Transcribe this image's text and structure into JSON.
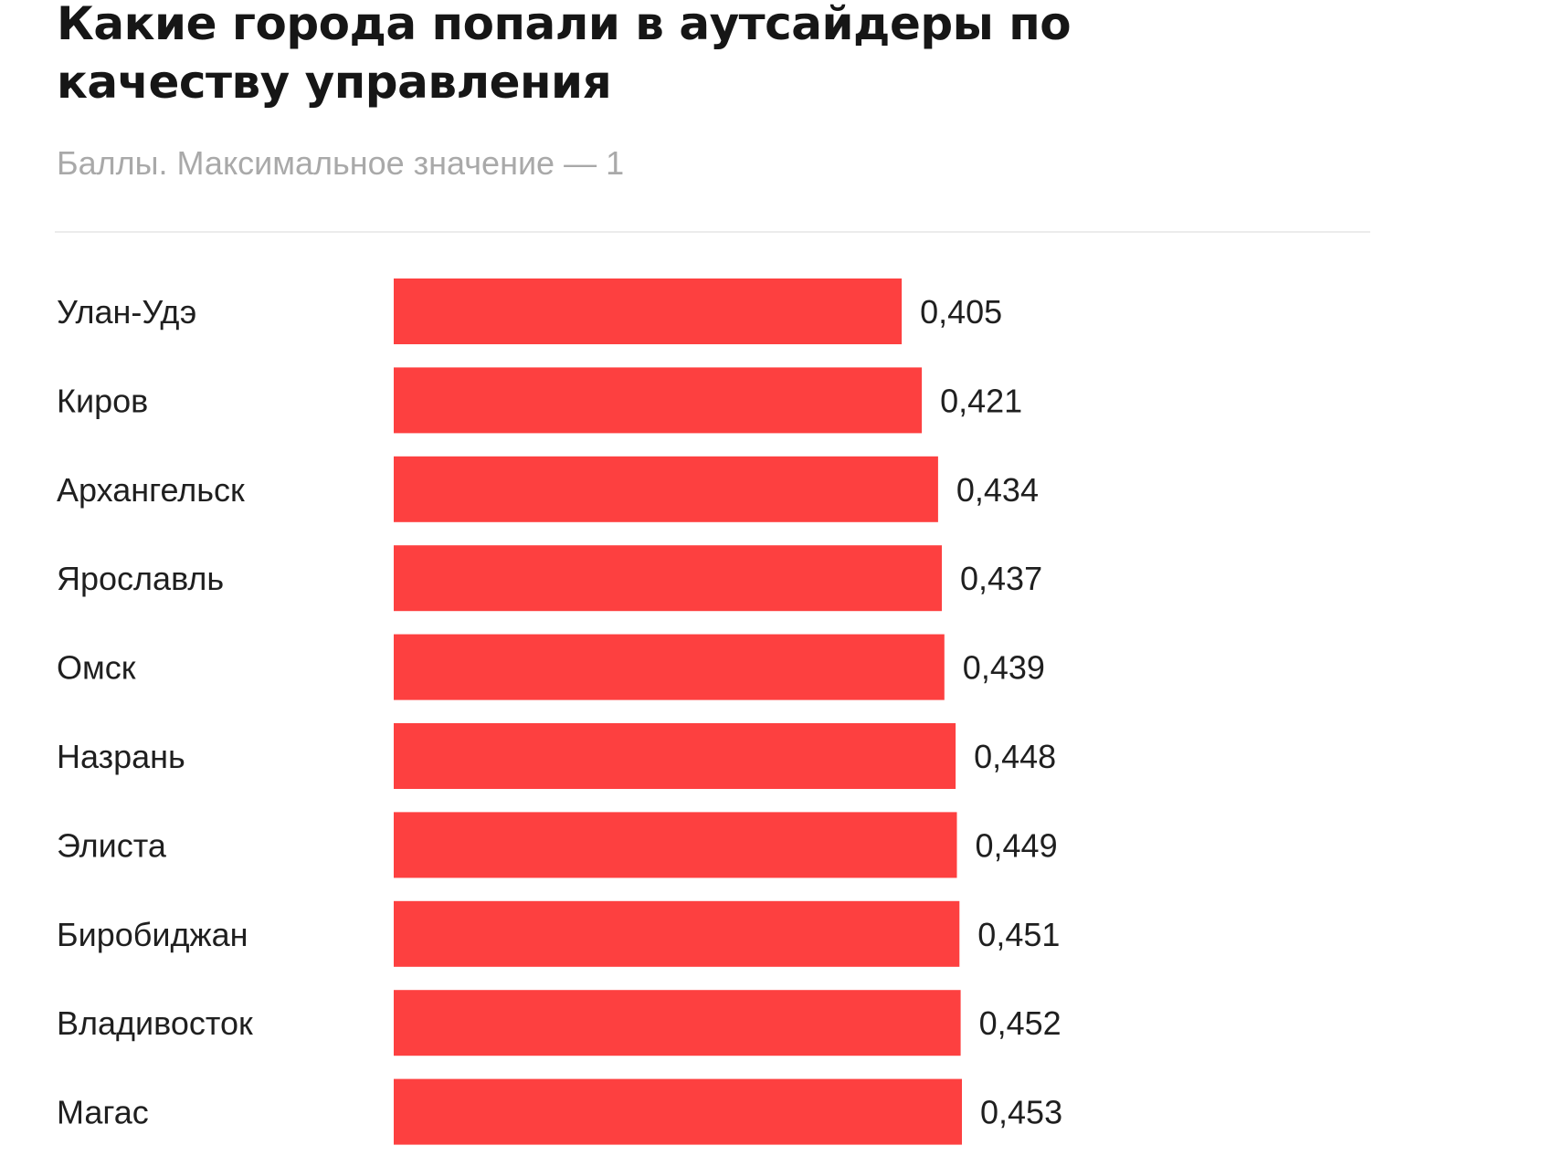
{
  "colors": {
    "bar": "#fd4040",
    "title": "#161616",
    "subtitle": "#a9a9a9",
    "text": "#1f1f1f"
  },
  "chart_data": {
    "type": "bar",
    "orientation": "horizontal",
    "title": "Какие города попали в аутсайдеры по качеству управления",
    "subtitle": "Баллы. Максимальное значение — 1",
    "categories": [
      "Улан-Удэ",
      "Киров",
      "Архангельск",
      "Ярославль",
      "Омск",
      "Назрань",
      "Элиста",
      "Биробиджан",
      "Владивосток",
      "Магас"
    ],
    "values": [
      0.405,
      0.421,
      0.434,
      0.437,
      0.439,
      0.448,
      0.449,
      0.451,
      0.452,
      0.453
    ],
    "value_labels": [
      "0,405",
      "0,421",
      "0,434",
      "0,437",
      "0,439",
      "0,448",
      "0,449",
      "0,451",
      "0,452",
      "0,453"
    ],
    "xlabel": "",
    "ylabel": "",
    "xlim": [
      0,
      0.453
    ],
    "grid": false,
    "legend": "none"
  }
}
